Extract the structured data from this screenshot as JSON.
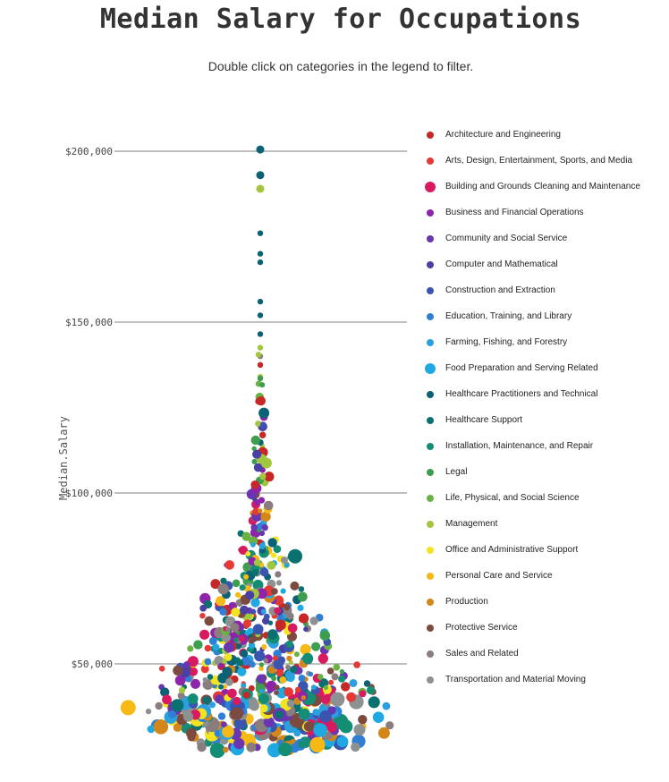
{
  "page": {
    "title": "Median Salary for Occupations",
    "subtitle": "Double click on categories in the legend to filter."
  },
  "chart_data": {
    "type": "scatter",
    "subtype": "beeswarm",
    "title": "Median Salary for Occupations",
    "ylabel": "Median.Salary",
    "xlabel": "",
    "ylim": [
      17000,
      219000
    ],
    "yticks": [
      50000,
      100000,
      150000,
      200000
    ],
    "ytick_labels": [
      "$50,000",
      "$100,000",
      "$150,000",
      "$200,000"
    ],
    "grid": true,
    "legend_position": "right",
    "categories": [
      {
        "name": "Architecture and Engineering",
        "color": "#c62828"
      },
      {
        "name": "Arts, Design, Entertainment, Sports, and Media",
        "color": "#e53935"
      },
      {
        "name": "Building and Grounds Cleaning and Maintenance",
        "color": "#d81b60",
        "big": true
      },
      {
        "name": "Business and Financial Operations",
        "color": "#8e24aa"
      },
      {
        "name": "Community and Social Service",
        "color": "#6a35b1"
      },
      {
        "name": "Computer and Mathematical",
        "color": "#4a3fa3"
      },
      {
        "name": "Construction and Extraction",
        "color": "#3a55b0"
      },
      {
        "name": "Education, Training, and Library",
        "color": "#2f7fd4"
      },
      {
        "name": "Farming, Fishing, and Forestry",
        "color": "#2aa1de"
      },
      {
        "name": "Food Preparation and Serving Related",
        "color": "#20a8e3",
        "big": true
      },
      {
        "name": "Healthcare Practitioners and Technical",
        "color": "#0b6175"
      },
      {
        "name": "Healthcare Support",
        "color": "#0a7170"
      },
      {
        "name": "Installation, Maintenance, and Repair",
        "color": "#148d75"
      },
      {
        "name": "Legal",
        "color": "#3d9e4f"
      },
      {
        "name": "Life, Physical, and Social Science",
        "color": "#6bb244"
      },
      {
        "name": "Management",
        "color": "#a3c63f"
      },
      {
        "name": "Office and Administrative Support",
        "color": "#f3e321"
      },
      {
        "name": "Personal Care and Service",
        "color": "#f7b916"
      },
      {
        "name": "Production",
        "color": "#d3871b"
      },
      {
        "name": "Protective Service",
        "color": "#7d4a3f"
      },
      {
        "name": "Sales and Related",
        "color": "#8a7d7d"
      },
      {
        "name": "Transportation and Material Moving",
        "color": "#8d9191"
      }
    ],
    "notable_points": [
      {
        "category": "Healthcare Practitioners and Technical",
        "value": 200500
      },
      {
        "category": "Healthcare Practitioners and Technical",
        "value": 193000
      },
      {
        "category": "Management",
        "value": 189000
      },
      {
        "category": "Healthcare Practitioners and Technical",
        "value": 176000
      },
      {
        "category": "Healthcare Practitioners and Technical",
        "value": 170000
      },
      {
        "category": "Healthcare Practitioners and Technical",
        "value": 167500
      },
      {
        "category": "Healthcare Practitioners and Technical",
        "value": 156000
      },
      {
        "category": "Healthcare Practitioners and Technical",
        "value": 152000
      },
      {
        "category": "Healthcare Practitioners and Technical",
        "value": 146500
      },
      {
        "category": "Management",
        "value": 142500
      },
      {
        "category": "Sales and Related",
        "value": 140000
      },
      {
        "category": "Management",
        "value": 140500
      },
      {
        "category": "Architecture and Engineering",
        "value": 137500
      },
      {
        "category": "Management",
        "value": 134000
      },
      {
        "category": "Legal",
        "value": 133500
      },
      {
        "category": "Healthcare Support",
        "value": 81500
      }
    ],
    "distribution_bands": [
      {
        "value": 27000,
        "count": 60
      },
      {
        "value": 32000,
        "count": 80
      },
      {
        "value": 37000,
        "count": 80
      },
      {
        "value": 42000,
        "count": 70
      },
      {
        "value": 47000,
        "count": 62
      },
      {
        "value": 52000,
        "count": 55
      },
      {
        "value": 57000,
        "count": 48
      },
      {
        "value": 62000,
        "count": 40
      },
      {
        "value": 67000,
        "count": 34
      },
      {
        "value": 72000,
        "count": 28
      },
      {
        "value": 77000,
        "count": 22
      },
      {
        "value": 82000,
        "count": 17
      },
      {
        "value": 87000,
        "count": 13
      },
      {
        "value": 92000,
        "count": 10
      },
      {
        "value": 97000,
        "count": 8
      },
      {
        "value": 102000,
        "count": 7
      },
      {
        "value": 107000,
        "count": 6
      },
      {
        "value": 112000,
        "count": 5
      },
      {
        "value": 117000,
        "count": 5
      },
      {
        "value": 122000,
        "count": 4
      },
      {
        "value": 127000,
        "count": 3
      },
      {
        "value": 132000,
        "count": 2
      }
    ]
  }
}
